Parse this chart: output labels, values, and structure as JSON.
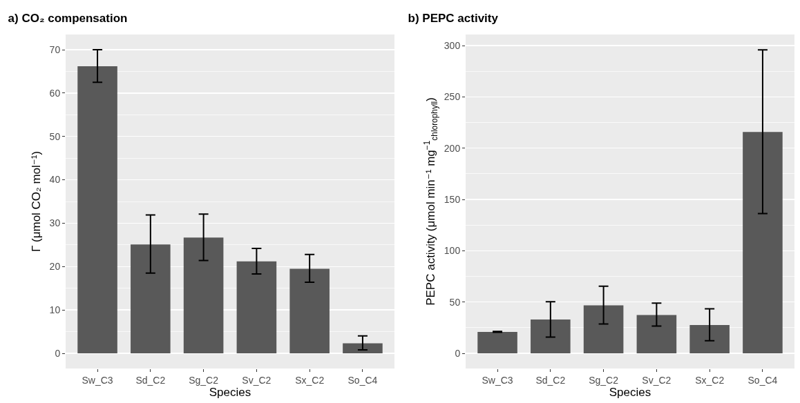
{
  "chart_data": [
    {
      "type": "bar",
      "title": "a) CO₂ compensation",
      "xlabel": "Species",
      "ylabel": "Γ (μmol CO₂ mol⁻¹)",
      "categories": [
        "Sw_C3",
        "Sd_C2",
        "Sg_C2",
        "Sv_C2",
        "Sx_C2",
        "So_C4"
      ],
      "values": [
        66.2,
        25.1,
        26.7,
        21.2,
        19.5,
        2.3
      ],
      "color": "#595959",
      "errors": [
        [
          62.5,
          70.0
        ],
        [
          18.5,
          31.9
        ],
        [
          21.4,
          32.1
        ],
        [
          18.3,
          24.2
        ],
        [
          16.4,
          22.8
        ],
        [
          0.8,
          4.0
        ]
      ],
      "ylim": [
        -3.5,
        73.5
      ],
      "yticks": [
        0,
        10,
        20,
        30,
        40,
        50,
        60,
        70
      ],
      "grid": "y"
    },
    {
      "type": "bar",
      "title": "b) PEPC activity",
      "xlabel": "Species",
      "ylabel": "PEPC activity (μmol min⁻¹ mg$^{−1}$$_{chlorophyll}$)",
      "categories": [
        "Sw_C3",
        "Sd_C2",
        "Sg_C2",
        "Sv_C2",
        "Sx_C2",
        "So_C4"
      ],
      "values": [
        20.9,
        32.9,
        46.7,
        37.3,
        27.6,
        215.7
      ],
      "color": "#595959",
      "errors": [
        [
          20.6,
          21.3
        ],
        [
          15.8,
          50.3
        ],
        [
          28.6,
          65.4
        ],
        [
          26.6,
          49.0
        ],
        [
          12.3,
          43.4
        ],
        [
          136.3,
          295.9
        ]
      ],
      "ylim": [
        -14.8,
        310.8
      ],
      "yticks": [
        0,
        50,
        100,
        150,
        200,
        250,
        300
      ],
      "grid": "y"
    }
  ]
}
